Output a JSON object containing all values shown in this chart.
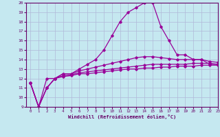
{
  "xlabel": "Windchill (Refroidissement éolien,°C)",
  "xlim": [
    -0.5,
    23
  ],
  "ylim": [
    9,
    20
  ],
  "yticks": [
    9,
    10,
    11,
    12,
    13,
    14,
    15,
    16,
    17,
    18,
    19,
    20
  ],
  "xticks": [
    0,
    1,
    2,
    3,
    4,
    5,
    6,
    7,
    8,
    9,
    10,
    11,
    12,
    13,
    14,
    15,
    16,
    17,
    18,
    19,
    20,
    21,
    22,
    23
  ],
  "line_color": "#990099",
  "bg_color": "#c5e8f0",
  "grid_color": "#b0b8d8",
  "lines": [
    {
      "x": [
        0,
        1,
        2,
        3,
        4,
        5,
        6,
        7,
        8,
        9,
        10,
        11,
        12,
        13,
        14,
        15,
        16,
        17,
        18,
        19,
        20,
        21,
        22,
        23
      ],
      "y": [
        11.5,
        9.0,
        11.0,
        12.0,
        12.2,
        12.3,
        12.5,
        12.5,
        12.6,
        12.7,
        12.8,
        12.9,
        13.0,
        13.0,
        13.1,
        13.1,
        13.2,
        13.2,
        13.3,
        13.3,
        13.3,
        13.4,
        13.4,
        13.4
      ]
    },
    {
      "x": [
        0,
        1,
        2,
        3,
        4,
        5,
        6,
        7,
        8,
        9,
        10,
        11,
        12,
        13,
        14,
        15,
        16,
        17,
        18,
        19,
        20,
        21,
        22,
        23
      ],
      "y": [
        11.5,
        9.0,
        11.0,
        12.0,
        12.3,
        12.4,
        12.6,
        12.7,
        12.8,
        12.9,
        13.0,
        13.1,
        13.2,
        13.3,
        13.4,
        13.5,
        13.5,
        13.5,
        13.5,
        13.5,
        13.6,
        13.6,
        13.6,
        13.5
      ]
    },
    {
      "x": [
        0,
        1,
        2,
        3,
        4,
        5,
        6,
        7,
        8,
        9,
        10,
        11,
        12,
        13,
        14,
        15,
        16,
        17,
        18,
        19,
        20,
        21,
        22,
        23
      ],
      "y": [
        11.5,
        9.0,
        11.0,
        12.0,
        12.5,
        12.5,
        12.8,
        13.0,
        13.2,
        13.4,
        13.6,
        13.8,
        14.0,
        14.2,
        14.3,
        14.3,
        14.2,
        14.1,
        14.0,
        14.0,
        14.0,
        14.0,
        13.8,
        13.7
      ]
    },
    {
      "x": [
        0,
        1,
        2,
        3,
        4,
        5,
        6,
        7,
        8,
        9,
        10,
        11,
        12,
        13,
        14,
        15,
        16,
        17,
        18,
        19,
        20,
        21,
        22,
        23
      ],
      "y": [
        11.5,
        9.0,
        12.0,
        12.0,
        12.5,
        12.5,
        13.0,
        13.5,
        14.0,
        15.0,
        16.5,
        18.0,
        19.0,
        19.5,
        20.0,
        20.0,
        17.5,
        16.0,
        14.5,
        14.5,
        14.0,
        14.0,
        13.5,
        13.5
      ]
    }
  ]
}
